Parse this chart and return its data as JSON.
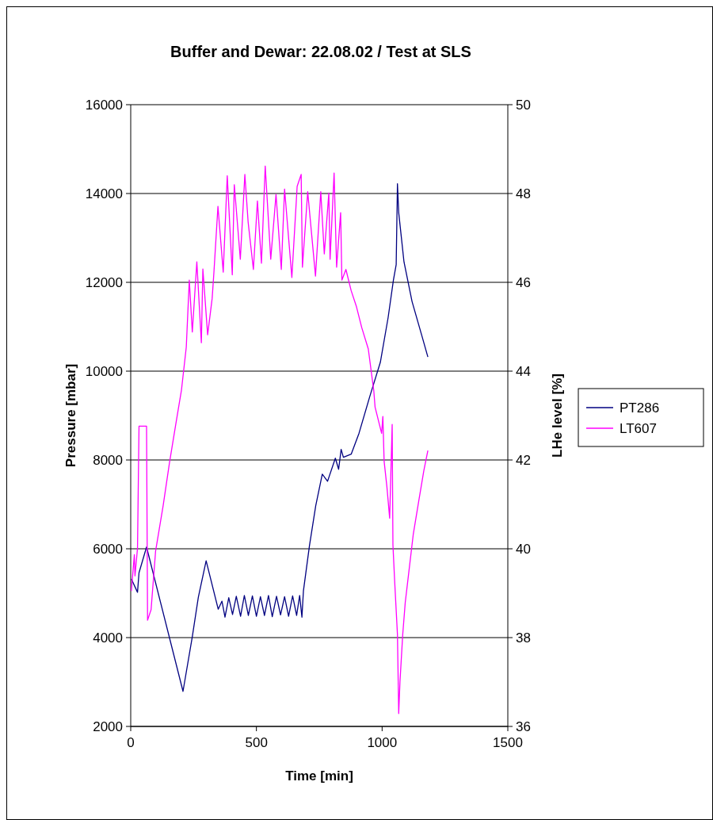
{
  "chart_data": {
    "type": "line",
    "title": "Buffer and Dewar: 22.08.02 / Test at SLS",
    "xlabel": "Time [min]",
    "ylabel": "Pressure [mbar]",
    "y2label": "LHe level [%]",
    "xlim": [
      0,
      1500
    ],
    "xticks": [
      0,
      500,
      1000,
      1500
    ],
    "ylim": [
      2000,
      16000
    ],
    "yticks": [
      2000,
      4000,
      6000,
      8000,
      10000,
      12000,
      14000,
      16000
    ],
    "y2lim": [
      36,
      50
    ],
    "y2ticks": [
      36,
      38,
      40,
      42,
      44,
      46,
      48,
      50
    ],
    "grid": "y",
    "legend": "right",
    "line_style": "solid",
    "series": [
      {
        "name": "PT286",
        "color": "#000080",
        "x": [
          2.5,
          27,
          33,
          63,
          208,
          245,
          269,
          300,
          348,
          363,
          375,
          390,
          405,
          420,
          437,
          452,
          468,
          484,
          500,
          516,
          532,
          548,
          563,
          580,
          596,
          612,
          628,
          644,
          660,
          672,
          681,
          687,
          711,
          736,
          762,
          783,
          814,
          827,
          837,
          846,
          877,
          908,
          951,
          993,
          1024,
          1045,
          1056,
          1061,
          1066,
          1087,
          1119,
          1161,
          1182
        ],
        "values": [
          5320,
          5020,
          5460,
          6040,
          2790,
          4020,
          4910,
          5730,
          4640,
          4820,
          4460,
          4900,
          4520,
          4930,
          4480,
          4950,
          4500,
          4940,
          4480,
          4920,
          4500,
          4950,
          4470,
          4930,
          4510,
          4920,
          4480,
          4940,
          4500,
          4950,
          4460,
          5050,
          6070,
          6970,
          7680,
          7520,
          8040,
          7790,
          8240,
          8060,
          8130,
          8600,
          9430,
          10200,
          11210,
          12050,
          12400,
          14220,
          13570,
          12460,
          11570,
          10740,
          10320
        ]
      },
      {
        "name": "LT607",
        "color": "#ff00ff",
        "axis": "y2",
        "x": [
          2.5,
          14.5,
          17,
          27,
          33,
          63,
          67,
          81,
          99,
          129,
          154,
          178,
          202,
          221,
          233,
          245,
          263,
          281,
          287,
          306,
          324,
          331,
          347,
          368,
          384,
          404,
          412,
          436,
          454,
          467,
          488,
          504,
          520,
          535,
          557,
          578,
          599,
          612,
          641,
          662,
          678,
          683,
          704,
          735,
          756,
          770,
          788,
          793,
          809,
          819,
          835,
          840,
          856,
          877,
          898,
          919,
          945,
          967,
          972,
          998,
          1003,
          1008,
          1019,
          1030,
          1040,
          1043,
          1050,
          1061,
          1066,
          1071,
          1082,
          1092,
          1108,
          1124,
          1145,
          1166,
          1182
        ],
        "values": [
          39.05,
          39.87,
          39.39,
          40.01,
          42.76,
          42.76,
          38.39,
          38.63,
          39.95,
          40.97,
          41.93,
          42.76,
          43.58,
          44.54,
          46.05,
          44.88,
          46.46,
          44.64,
          46.3,
          44.82,
          45.64,
          46.23,
          47.71,
          46.23,
          48.4,
          46.17,
          48.2,
          46.52,
          48.43,
          47.36,
          46.29,
          47.83,
          46.43,
          48.62,
          46.52,
          47.98,
          46.29,
          48.1,
          46.11,
          48.16,
          48.43,
          46.34,
          48.04,
          46.14,
          48.04,
          46.64,
          48.01,
          46.52,
          48.46,
          46.34,
          47.57,
          46.05,
          46.29,
          45.81,
          45.45,
          44.98,
          44.5,
          43.55,
          43.19,
          42.6,
          42.98,
          41.97,
          41.4,
          40.69,
          42.8,
          40.09,
          39.26,
          38.07,
          36.29,
          37.0,
          38.07,
          38.79,
          39.56,
          40.33,
          41.05,
          41.76,
          42.21
        ]
      }
    ]
  }
}
